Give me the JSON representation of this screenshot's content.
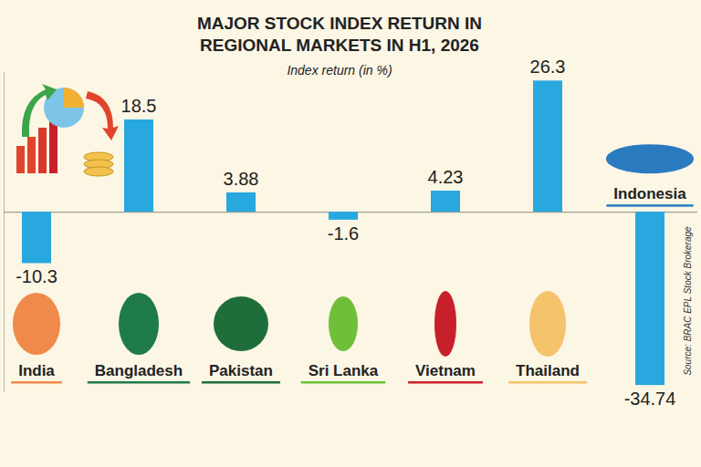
{
  "chart_data": {
    "type": "bar",
    "title": "MAJOR STOCK INDEX RETURN IN REGIONAL MARKETS IN H1, 2026",
    "subtitle": "Index return (in %)",
    "source": "Source: BRAC EPL Stock Brokerage",
    "categories": [
      "India",
      "Bangladesh",
      "Pakistan",
      "Sri Lanka",
      "Vietnam",
      "Thailand",
      "Indonesia"
    ],
    "values": [
      -10.3,
      18.5,
      3.88,
      -1.6,
      4.23,
      26.3,
      -34.74
    ],
    "color": "#29a8e0",
    "ylim": [
      -36,
      28
    ],
    "yticks": [
      0
    ],
    "tick_labels": "x",
    "data_labels": true
  }
}
